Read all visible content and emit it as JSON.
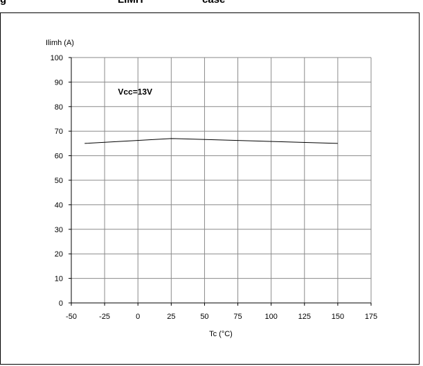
{
  "header": {
    "fragments": [
      "g",
      "LIMH",
      "case"
    ]
  },
  "chart_data": {
    "type": "line",
    "ylabel": "Ilimh (A)",
    "xlabel": "Tc (°C)",
    "xlim": [
      -50,
      175
    ],
    "ylim": [
      0,
      100
    ],
    "x_ticks": [
      -50,
      -25,
      0,
      25,
      50,
      75,
      100,
      125,
      150,
      175
    ],
    "y_ticks": [
      0,
      10,
      20,
      30,
      40,
      50,
      60,
      70,
      80,
      90,
      100
    ],
    "grid": true,
    "series": [
      {
        "x": [
          -40,
          25,
          150
        ],
        "values": [
          65,
          67,
          65
        ],
        "color": "#000000"
      }
    ],
    "annotations": [
      {
        "text": "Vcc=13V",
        "x": -15,
        "y": 86
      }
    ]
  }
}
